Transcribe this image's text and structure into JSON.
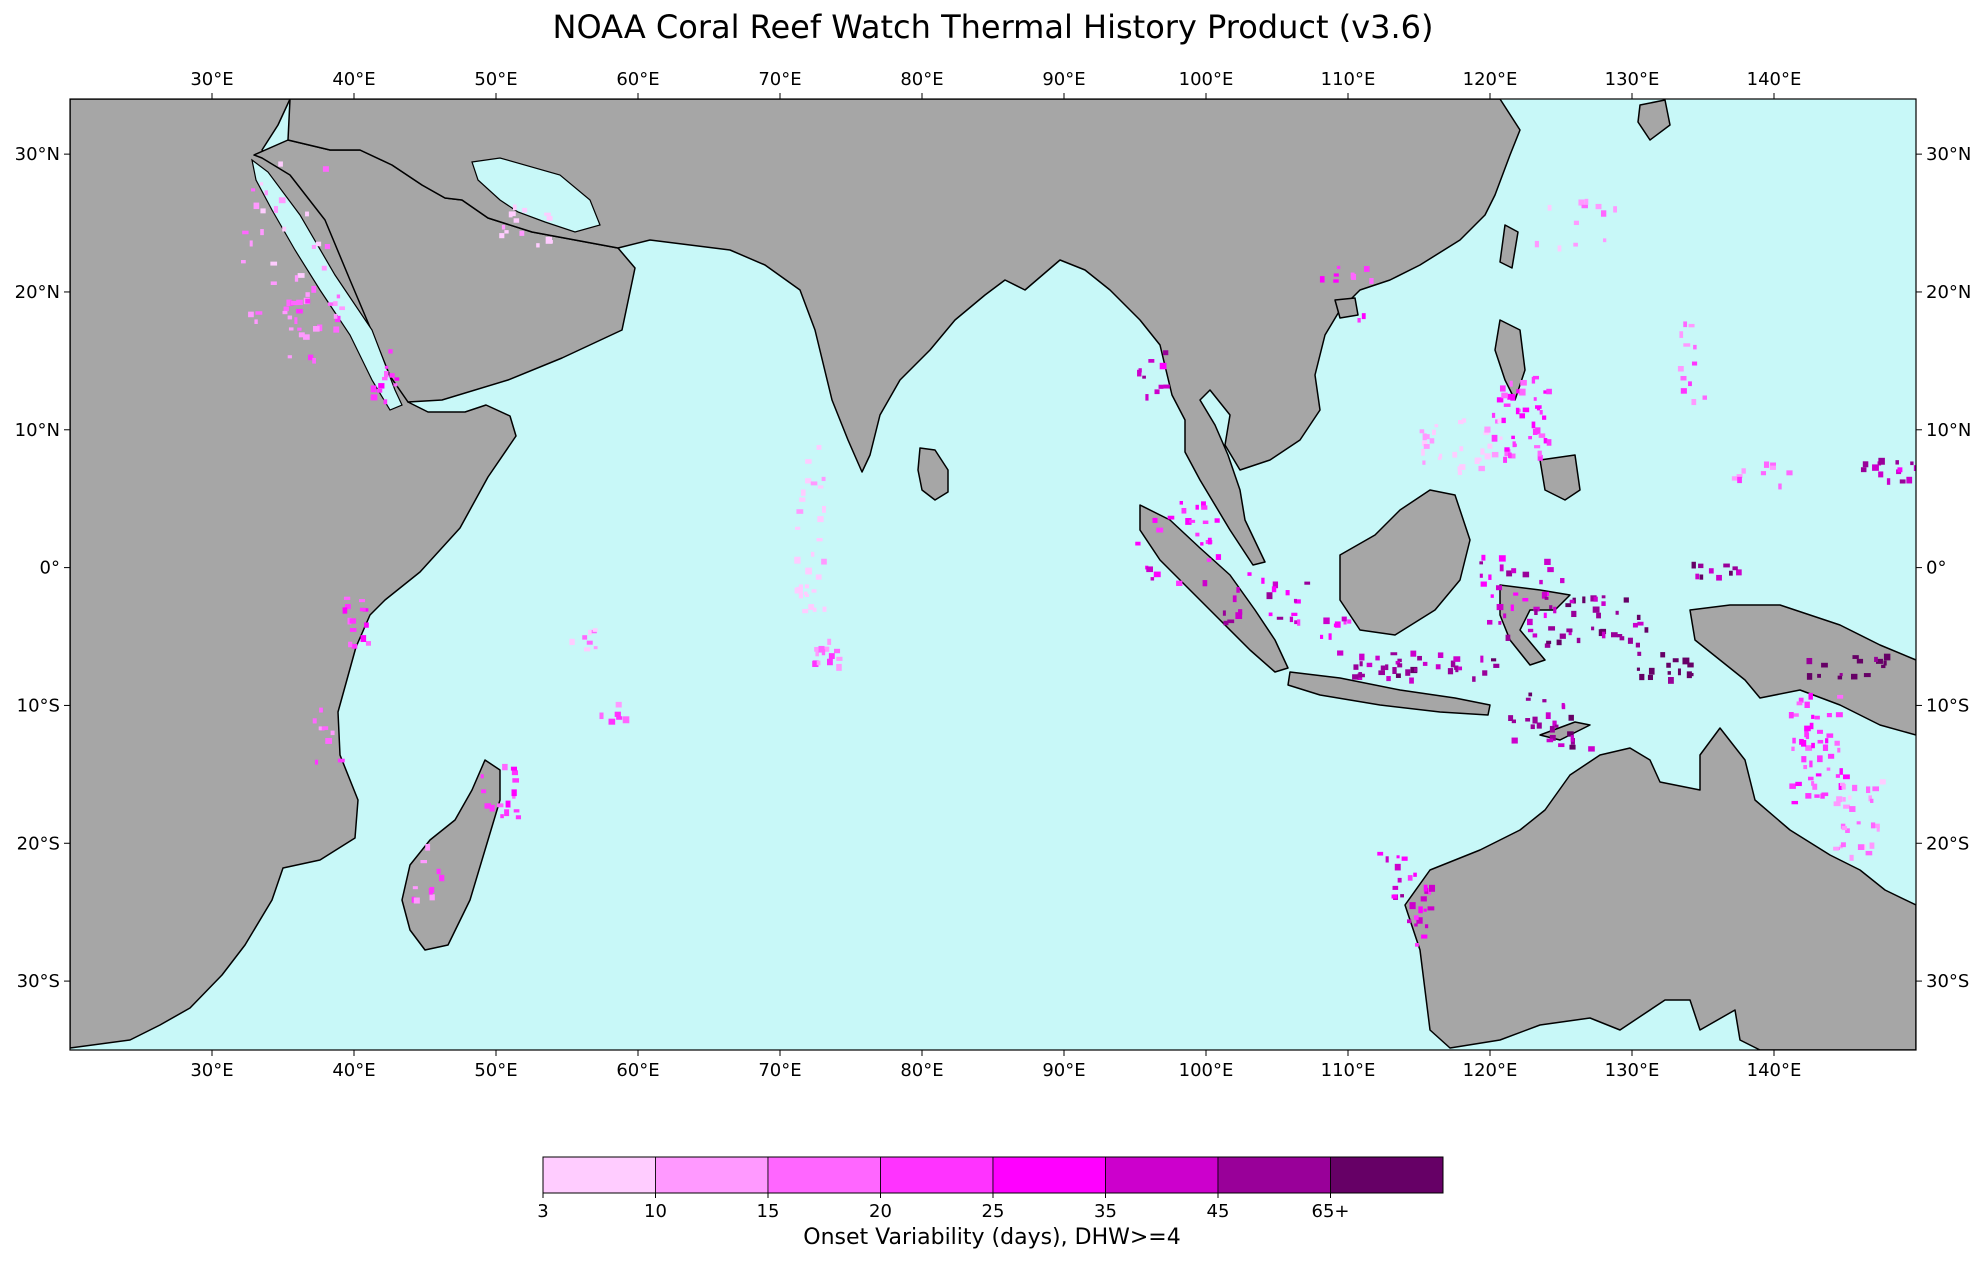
{
  "map": {
    "title": "NOAA Coral Reef Watch Thermal History Product (v3.6)",
    "extent": {
      "lon_min": 20,
      "lon_max": 150,
      "lat_min": -35,
      "lat_max": 34
    },
    "ocean_color": "#c8f8f8",
    "land_color": "#a6a6a6",
    "coastline_color": "#000000",
    "lon_ticks": [
      {
        "value": 30,
        "label": "30°E"
      },
      {
        "value": 40,
        "label": "40°E"
      },
      {
        "value": 50,
        "label": "50°E"
      },
      {
        "value": 60,
        "label": "60°E"
      },
      {
        "value": 70,
        "label": "70°E"
      },
      {
        "value": 80,
        "label": "80°E"
      },
      {
        "value": 90,
        "label": "90°E"
      },
      {
        "value": 100,
        "label": "100°E"
      },
      {
        "value": 110,
        "label": "110°E"
      },
      {
        "value": 120,
        "label": "120°E"
      },
      {
        "value": 130,
        "label": "130°E"
      },
      {
        "value": 140,
        "label": "140°E"
      }
    ],
    "lat_ticks": [
      {
        "value": 30,
        "label": "30°N"
      },
      {
        "value": 20,
        "label": "20°N"
      },
      {
        "value": 10,
        "label": "10°N"
      },
      {
        "value": 0,
        "label": "0°"
      },
      {
        "value": -10,
        "label": "10°S"
      },
      {
        "value": -20,
        "label": "20°S"
      },
      {
        "value": -30,
        "label": "30°S"
      }
    ]
  },
  "colorbar": {
    "title": "Onset Variability (days), DHW>=4",
    "tick_labels": [
      "3",
      "10",
      "15",
      "20",
      "25",
      "35",
      "45",
      "65+"
    ],
    "colors": [
      "#ffccff",
      "#ff99ff",
      "#ff66ff",
      "#ff33ff",
      "#ff00ff",
      "#cc00cc",
      "#990099",
      "#660066"
    ]
  }
}
